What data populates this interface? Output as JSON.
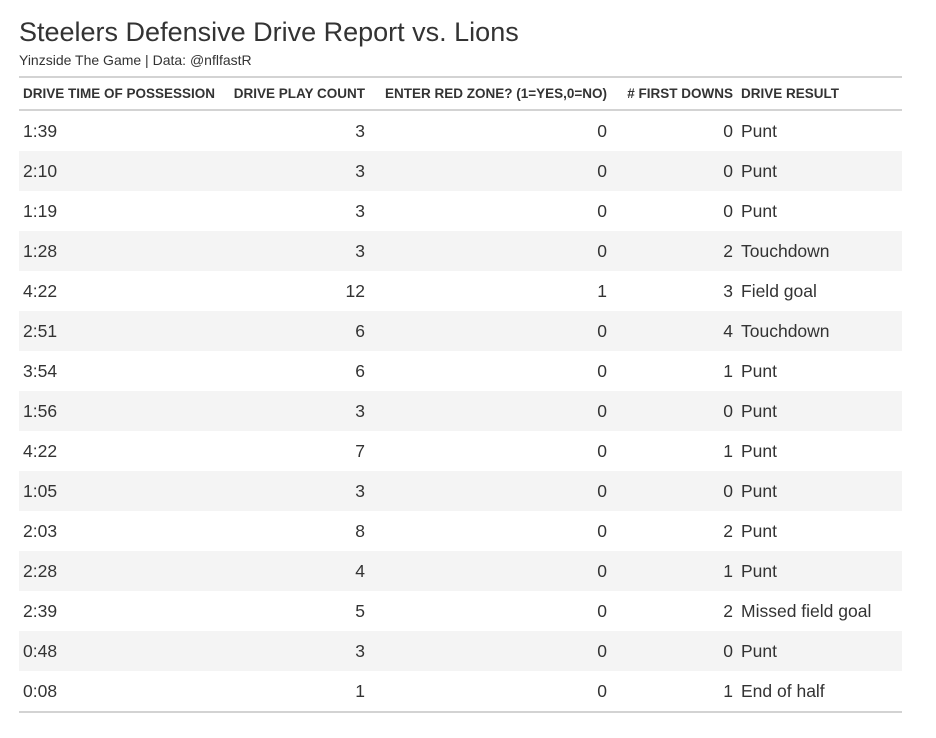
{
  "report": {
    "title": "Steelers Defensive Drive Report vs. Lions",
    "subtitle": "Yinzside The Game | Data: @nflfastR"
  },
  "table": {
    "headers": [
      "DRIVE TIME OF POSSESSION",
      "DRIVE PLAY COUNT",
      "ENTER RED ZONE? (1=YES,0=NO)",
      "# FIRST DOWNS",
      "DRIVE RESULT"
    ],
    "rows": [
      [
        "1:39",
        "3",
        "0",
        "0",
        "Punt"
      ],
      [
        "2:10",
        "3",
        "0",
        "0",
        "Punt"
      ],
      [
        "1:19",
        "3",
        "0",
        "0",
        "Punt"
      ],
      [
        "1:28",
        "3",
        "0",
        "2",
        "Touchdown"
      ],
      [
        "4:22",
        "12",
        "1",
        "3",
        "Field goal"
      ],
      [
        "2:51",
        "6",
        "0",
        "4",
        "Touchdown"
      ],
      [
        "3:54",
        "6",
        "0",
        "1",
        "Punt"
      ],
      [
        "1:56",
        "3",
        "0",
        "0",
        "Punt"
      ],
      [
        "4:22",
        "7",
        "0",
        "1",
        "Punt"
      ],
      [
        "1:05",
        "3",
        "0",
        "0",
        "Punt"
      ],
      [
        "2:03",
        "8",
        "0",
        "2",
        "Punt"
      ],
      [
        "2:28",
        "4",
        "0",
        "1",
        "Punt"
      ],
      [
        "2:39",
        "5",
        "0",
        "2",
        "Missed field goal"
      ],
      [
        "0:48",
        "3",
        "0",
        "0",
        "Punt"
      ],
      [
        "0:08",
        "1",
        "0",
        "1",
        "End of half"
      ]
    ]
  }
}
